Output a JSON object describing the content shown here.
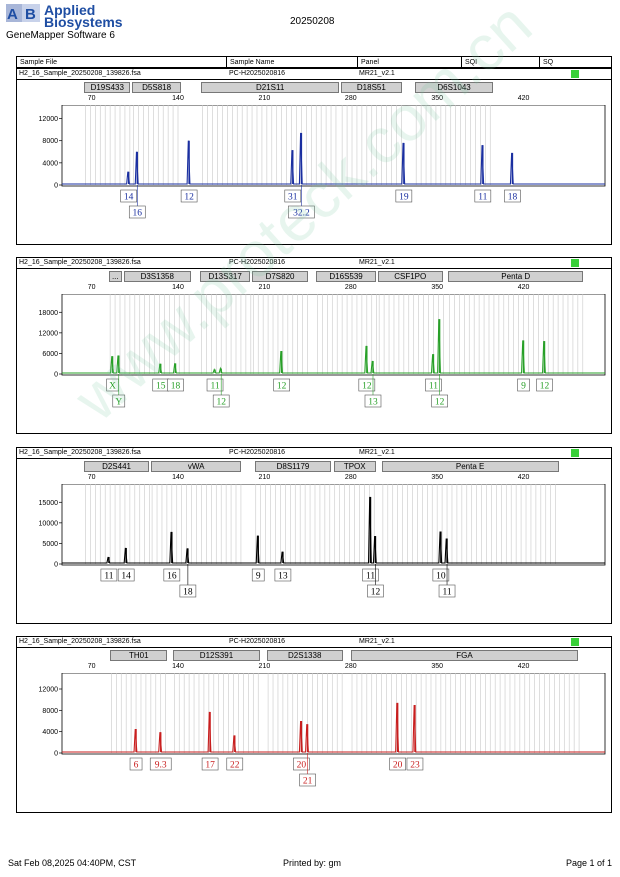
{
  "header": {
    "brand_line1": "Applied",
    "brand_line2": "Biosystems",
    "software": "GeneMapper Software 6",
    "run_date": "20250208",
    "columns": [
      "Sample File",
      "Sample Name",
      "Panel",
      "SQI",
      "SQ"
    ]
  },
  "footer": {
    "printed_on": "Sat Feb 08,2025 04:40PM, CST",
    "printed_by": "Printed by: gm",
    "page": "Page 1 of 1"
  },
  "watermark": "www.proteck.com.cn",
  "colors": {
    "blue": "#1a2fa0",
    "green": "#28a028",
    "black": "#000000",
    "red": "#c81e1e",
    "status": "#39d039"
  },
  "chart_data": [
    {
      "type": "line",
      "dye": "blue",
      "sample_file": "H2_16_Sample_20250208_139826.fsa",
      "sample_name": "PC-H2025020816",
      "panel": "MR21_v2.1",
      "markers": [
        {
          "name": "D19S433",
          "start": 64,
          "end": 103
        },
        {
          "name": "D5S818",
          "start": 103,
          "end": 144
        },
        {
          "name": "D21S11",
          "start": 159,
          "end": 272
        },
        {
          "name": "D18S51",
          "start": 272,
          "end": 323
        },
        {
          "name": "D6S1043",
          "start": 332,
          "end": 397
        }
      ],
      "x_ticks": [
        70,
        140,
        210,
        280,
        350,
        420
      ],
      "y_ticks": [
        0,
        4000,
        8000,
        12000
      ],
      "ylim": [
        0,
        13000
      ],
      "peaks": [
        {
          "x": 100,
          "y": 2400
        },
        {
          "x": 107,
          "y": 6000
        },
        {
          "x": 149,
          "y": 8000
        },
        {
          "x": 233,
          "y": 6300
        },
        {
          "x": 240,
          "y": 9400
        },
        {
          "x": 323,
          "y": 7600
        },
        {
          "x": 387,
          "y": 7200
        },
        {
          "x": 411,
          "y": 5800
        }
      ],
      "alleles": [
        {
          "label": "14",
          "x": 100,
          "row": 1
        },
        {
          "label": "16",
          "x": 107,
          "row": 2
        },
        {
          "label": "12",
          "x": 149,
          "row": 1
        },
        {
          "label": "31",
          "x": 233,
          "row": 1
        },
        {
          "label": "32.2",
          "x": 240,
          "row": 2
        },
        {
          "label": "19",
          "x": 323,
          "row": 1
        },
        {
          "label": "11",
          "x": 387,
          "row": 1
        },
        {
          "label": "18",
          "x": 411,
          "row": 1
        }
      ]
    },
    {
      "type": "line",
      "dye": "green",
      "sample_file": "H2_16_Sample_20250208_139826.fsa",
      "sample_name": "PC-H2025020816",
      "panel": "MR21_v2.1",
      "markers": [
        {
          "name": "...",
          "start": 84,
          "end": 96
        },
        {
          "name": "D3S1358",
          "start": 96,
          "end": 152
        },
        {
          "name": "D13S317",
          "start": 158,
          "end": 200
        },
        {
          "name": "D7S820",
          "start": 200,
          "end": 247
        },
        {
          "name": "D16S539",
          "start": 252,
          "end": 302
        },
        {
          "name": "CSF1PO",
          "start": 302,
          "end": 356
        },
        {
          "name": "Penta D",
          "start": 359,
          "end": 470
        }
      ],
      "x_ticks": [
        70,
        140,
        210,
        280,
        350,
        420
      ],
      "y_ticks": [
        0,
        6000,
        12000,
        18000
      ],
      "ylim": [
        0,
        21000
      ],
      "peaks": [
        {
          "x": 87,
          "y": 5200
        },
        {
          "x": 92,
          "y": 5400
        },
        {
          "x": 126,
          "y": 3000
        },
        {
          "x": 138,
          "y": 3100
        },
        {
          "x": 170,
          "y": 1300
        },
        {
          "x": 175,
          "y": 1600
        },
        {
          "x": 224,
          "y": 6700
        },
        {
          "x": 293,
          "y": 8200
        },
        {
          "x": 298,
          "y": 3800
        },
        {
          "x": 347,
          "y": 5800
        },
        {
          "x": 352,
          "y": 16000
        },
        {
          "x": 420,
          "y": 9800
        },
        {
          "x": 437,
          "y": 9600
        }
      ],
      "alleles": [
        {
          "label": "X",
          "x": 87,
          "row": 1
        },
        {
          "label": "Y",
          "x": 92,
          "row": 2
        },
        {
          "label": "15",
          "x": 126,
          "row": 1
        },
        {
          "label": "18",
          "x": 138,
          "row": 1
        },
        {
          "label": "11",
          "x": 170,
          "row": 1
        },
        {
          "label": "12",
          "x": 175,
          "row": 2
        },
        {
          "label": "12",
          "x": 224,
          "row": 1
        },
        {
          "label": "12",
          "x": 293,
          "row": 1
        },
        {
          "label": "13",
          "x": 298,
          "row": 2
        },
        {
          "label": "11",
          "x": 347,
          "row": 1
        },
        {
          "label": "12",
          "x": 352,
          "row": 2
        },
        {
          "label": "9",
          "x": 420,
          "row": 1
        },
        {
          "label": "12",
          "x": 437,
          "row": 1
        }
      ]
    },
    {
      "type": "line",
      "dye": "black",
      "sample_file": "H2_16_Sample_20250208_139826.fsa",
      "sample_name": "PC-H2025020816",
      "panel": "MR21_v2.1",
      "markers": [
        {
          "name": "D2S441",
          "start": 64,
          "end": 118
        },
        {
          "name": "vWA",
          "start": 118,
          "end": 193
        },
        {
          "name": "D8S1179",
          "start": 202,
          "end": 266
        },
        {
          "name": "TPOX",
          "start": 266,
          "end": 302
        },
        {
          "name": "Penta E",
          "start": 305,
          "end": 450
        }
      ],
      "x_ticks": [
        70,
        140,
        210,
        280,
        350,
        420
      ],
      "y_ticks": [
        0,
        5000,
        10000,
        15000
      ],
      "ylim": [
        0,
        17500
      ],
      "peaks": [
        {
          "x": 84,
          "y": 1700
        },
        {
          "x": 98,
          "y": 3900
        },
        {
          "x": 135,
          "y": 7800
        },
        {
          "x": 148,
          "y": 3800
        },
        {
          "x": 205,
          "y": 6900
        },
        {
          "x": 225,
          "y": 3000
        },
        {
          "x": 296,
          "y": 16300
        },
        {
          "x": 300,
          "y": 6800
        },
        {
          "x": 353,
          "y": 7900
        },
        {
          "x": 358,
          "y": 6200
        }
      ],
      "alleles": [
        {
          "label": "11",
          "x": 84,
          "row": 1
        },
        {
          "label": "14",
          "x": 98,
          "row": 1
        },
        {
          "label": "16",
          "x": 135,
          "row": 1
        },
        {
          "label": "18",
          "x": 148,
          "row": 2
        },
        {
          "label": "9",
          "x": 205,
          "row": 1
        },
        {
          "label": "13",
          "x": 225,
          "row": 1
        },
        {
          "label": "11",
          "x": 296,
          "row": 1
        },
        {
          "label": "12",
          "x": 300,
          "row": 2
        },
        {
          "label": "10",
          "x": 353,
          "row": 1
        },
        {
          "label": "11",
          "x": 358,
          "row": 2
        }
      ]
    },
    {
      "type": "line",
      "dye": "red",
      "sample_file": "H2_16_Sample_20250208_139826.fsa",
      "sample_name": "PC-H2025020816",
      "panel": "MR21_v2.1",
      "markers": [
        {
          "name": "TH01",
          "start": 85,
          "end": 133
        },
        {
          "name": "D12S391",
          "start": 136,
          "end": 208
        },
        {
          "name": "D2S1338",
          "start": 212,
          "end": 275
        },
        {
          "name": "FGA",
          "start": 280,
          "end": 466
        }
      ],
      "x_ticks": [
        70,
        140,
        210,
        280,
        350,
        420
      ],
      "y_ticks": [
        0,
        4000,
        8000,
        12000
      ],
      "ylim": [
        0,
        13500
      ],
      "peaks": [
        {
          "x": 106,
          "y": 4500
        },
        {
          "x": 126,
          "y": 3900
        },
        {
          "x": 166,
          "y": 7700
        },
        {
          "x": 186,
          "y": 3300
        },
        {
          "x": 240,
          "y": 6000
        },
        {
          "x": 245,
          "y": 5400
        },
        {
          "x": 318,
          "y": 9400
        },
        {
          "x": 332,
          "y": 9000
        }
      ],
      "alleles": [
        {
          "label": "6",
          "x": 106,
          "row": 1
        },
        {
          "label": "9.3",
          "x": 126,
          "row": 1
        },
        {
          "label": "17",
          "x": 166,
          "row": 1
        },
        {
          "label": "22",
          "x": 186,
          "row": 1
        },
        {
          "label": "20",
          "x": 240,
          "row": 1
        },
        {
          "label": "21",
          "x": 245,
          "row": 2
        },
        {
          "label": "20",
          "x": 318,
          "row": 1
        },
        {
          "label": "23",
          "x": 332,
          "row": 1
        }
      ]
    }
  ]
}
